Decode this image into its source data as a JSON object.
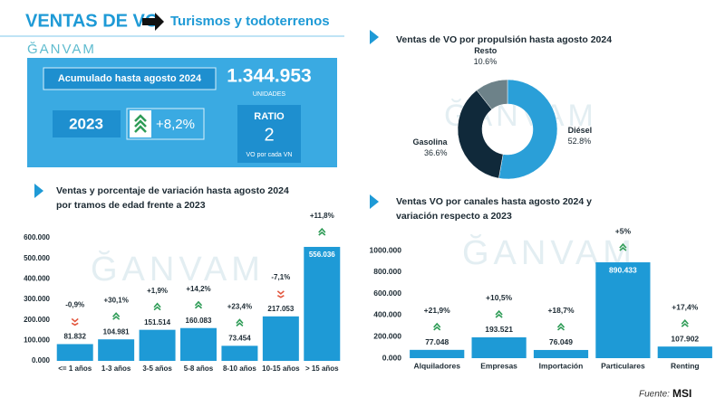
{
  "header": {
    "title": "VENTAS DE VO",
    "subtitle": "Turismos y todoterrenos",
    "logo": "ĞANVAM"
  },
  "summary": {
    "label": "Acumulado hasta agosto 2024",
    "total": "1.344.953",
    "unit": "UNIDADES",
    "year": "2023",
    "variation": "+8,2%",
    "ratio_title": "RATIO",
    "ratio": "2",
    "ratio_note": "VO por cada VN"
  },
  "chart_data": [
    {
      "type": "pie",
      "title": "Ventas de VO por propulsión hasta agosto 2024",
      "categories": [
        "Diésel",
        "Gasolina",
        "Resto"
      ],
      "values": [
        52.8,
        36.6,
        10.6
      ],
      "value_labels": [
        "52.8%",
        "36.6%",
        "10.6%"
      ],
      "colors": [
        "#2a9fd8",
        "#10293a",
        "#6d8289"
      ]
    },
    {
      "type": "bar",
      "title": "Ventas y porcentaje de variación hasta agosto 2024 por tramos de edad frente a 2023",
      "categories": [
        "<= 1 años",
        "1-3 años",
        "3-5 años",
        "5-8 años",
        "8-10 años",
        "10-15 años",
        "> 15 años"
      ],
      "values": [
        81832,
        104981,
        151514,
        160083,
        73454,
        217053,
        556036
      ],
      "value_labels": [
        "81.832",
        "104.981",
        "151.514",
        "160.083",
        "73.454",
        "217.053",
        "556.036"
      ],
      "variation": [
        -0.9,
        30.1,
        1.9,
        14.2,
        23.4,
        -7.1,
        11.8
      ],
      "variation_labels": [
        "-0,9%",
        "+30,1%",
        "+1,9%",
        "+14,2%",
        "+23,4%",
        "-7,1%",
        "+11,8%"
      ],
      "color": "#1e9ad6",
      "ylim": [
        0,
        600000
      ],
      "yticks": [
        {
          "value": 0,
          "label": "0.000"
        },
        {
          "value": 100000,
          "label": "100.000"
        },
        {
          "value": 200000,
          "label": "200.000"
        },
        {
          "value": 300000,
          "label": "300.000"
        },
        {
          "value": 400000,
          "label": "400.000"
        },
        {
          "value": 500000,
          "label": "500.000"
        },
        {
          "value": 600000,
          "label": "600.000"
        }
      ]
    },
    {
      "type": "bar",
      "title": "Ventas VO por canales hasta agosto 2024 y variación respecto a 2023",
      "categories": [
        "Alquiladores",
        "Empresas",
        "Importación",
        "Particulares",
        "Renting"
      ],
      "values": [
        77048,
        193521,
        76049,
        890433,
        107902
      ],
      "value_labels": [
        "77.048",
        "193.521",
        "76.049",
        "890.433",
        "107.902"
      ],
      "variation": [
        21.9,
        10.5,
        18.7,
        5,
        17.4
      ],
      "variation_labels": [
        "+21,9%",
        "+10,5%",
        "+18,7%",
        "+5%",
        "+17,4%"
      ],
      "color": "#1e9ad6",
      "ylim": [
        0,
        1000000
      ],
      "yticks": [
        {
          "value": 0,
          "label": "0.000"
        },
        {
          "value": 200000,
          "label": "200.000"
        },
        {
          "value": 400000,
          "label": "400.000"
        },
        {
          "value": 600000,
          "label": "600.000"
        },
        {
          "value": 800000,
          "label": "800.000"
        },
        {
          "value": 1000000,
          "label": "1000.000"
        }
      ]
    }
  ],
  "footer": {
    "source": "Fuente:",
    "source_logo": "MSI"
  }
}
